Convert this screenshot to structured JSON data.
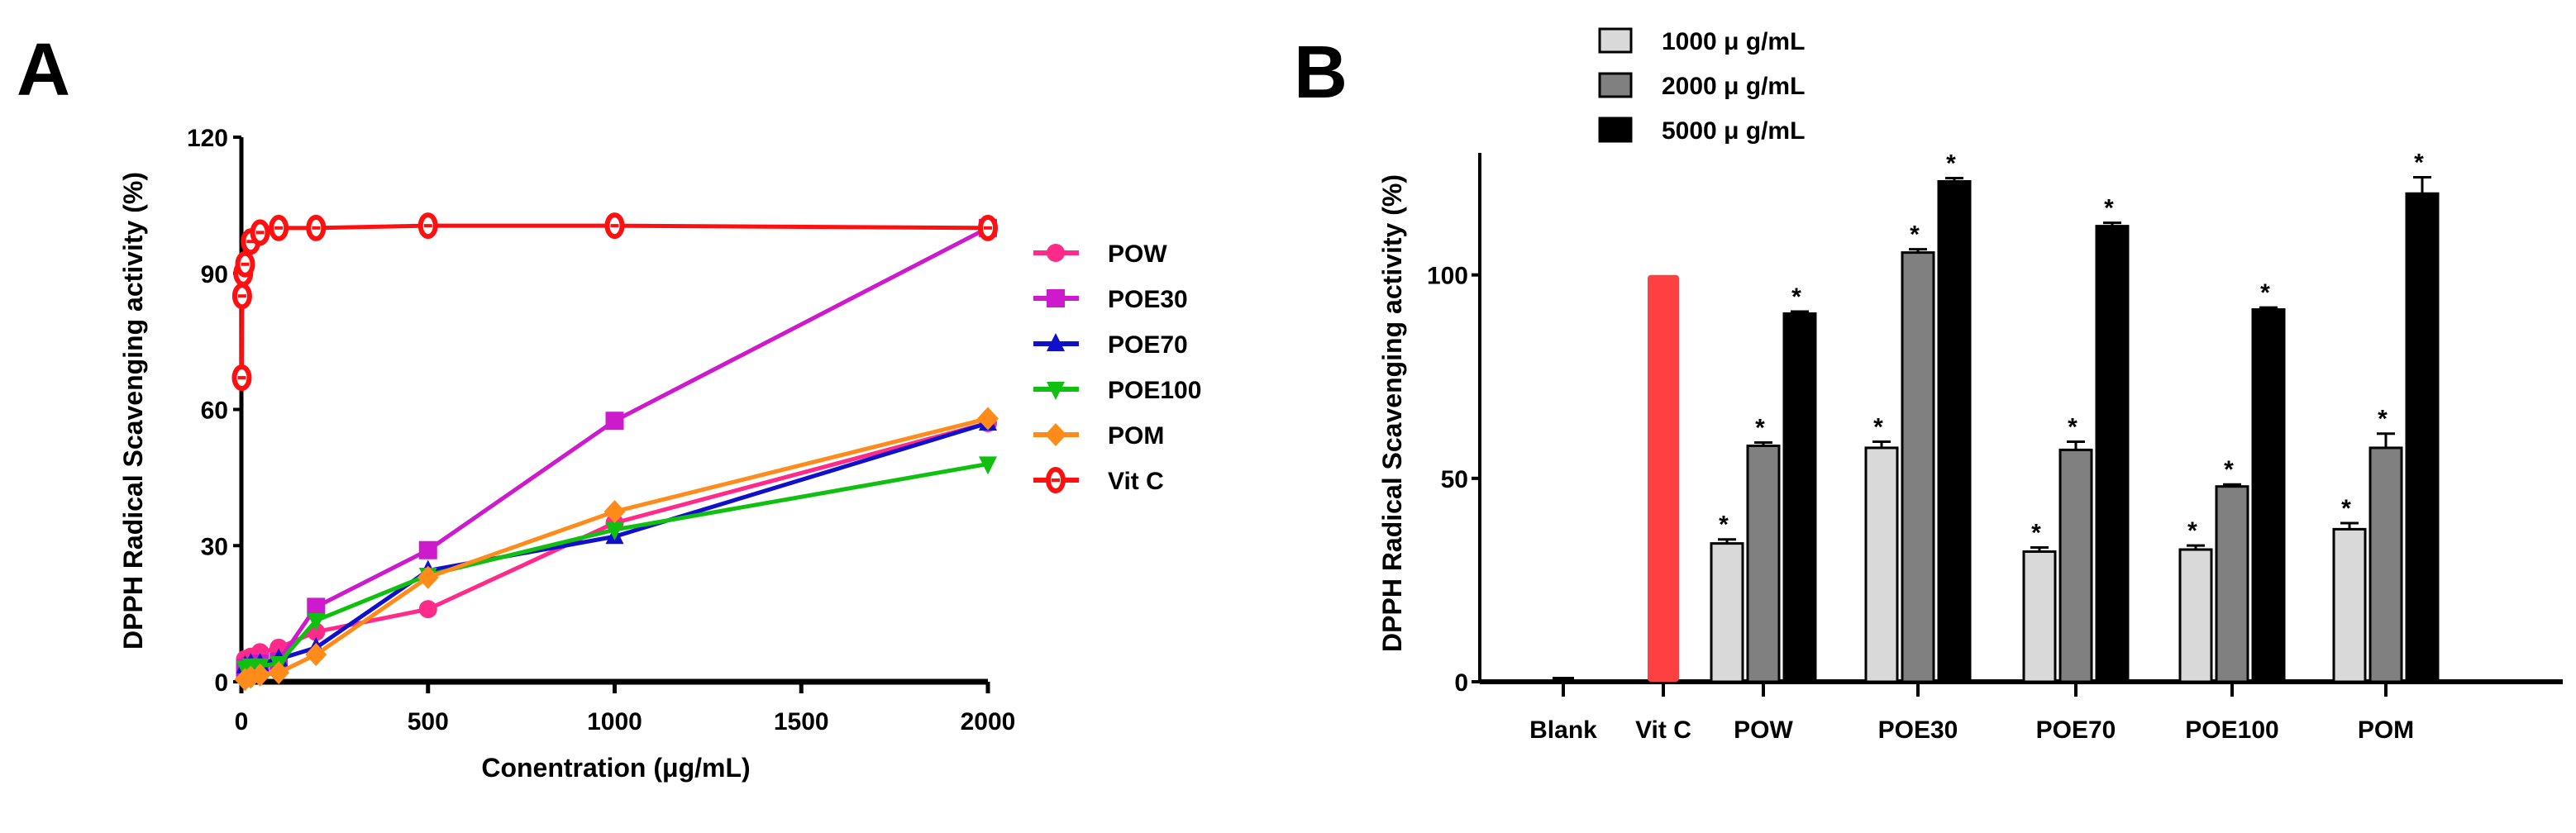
{
  "panels": {
    "a": "A",
    "b": "B"
  },
  "chart_data": [
    {
      "type": "line",
      "panel": "A",
      "xlabel": "Conentration (μg/mL)",
      "ylabel": "DPPH Radical Scavenging activity (%)",
      "xlim": [
        0,
        2000
      ],
      "ylim": [
        0,
        120
      ],
      "xticks": [
        0,
        500,
        1000,
        1500,
        2000
      ],
      "yticks": [
        0,
        30,
        60,
        90,
        120
      ],
      "legend_position": "right",
      "series": [
        {
          "name": "POW",
          "color": "#ff2a8a",
          "marker": "circle",
          "x": [
            10,
            25,
            50,
            100,
            200,
            500,
            1000,
            2000
          ],
          "y": [
            5,
            5.5,
            6.5,
            7.5,
            11,
            16,
            35,
            57
          ]
        },
        {
          "name": "POE30",
          "color": "#cc1acc",
          "marker": "square",
          "x": [
            10,
            25,
            50,
            100,
            200,
            500,
            1000,
            2000
          ],
          "y": [
            3,
            3.5,
            4,
            4.5,
            16.5,
            29,
            57.5,
            100
          ]
        },
        {
          "name": "POE70",
          "color": "#1010cc",
          "marker": "triangle-up",
          "x": [
            10,
            25,
            50,
            100,
            200,
            500,
            1000,
            2000
          ],
          "y": [
            3.5,
            4,
            4,
            5,
            7.5,
            24.5,
            32,
            57
          ]
        },
        {
          "name": "POE100",
          "color": "#10c010",
          "marker": "triangle-down",
          "x": [
            10,
            25,
            50,
            100,
            200,
            500,
            1000,
            2000
          ],
          "y": [
            3,
            3.5,
            3.5,
            4,
            13.5,
            23.5,
            33.5,
            48
          ]
        },
        {
          "name": "POM",
          "color": "#ff8c1a",
          "marker": "diamond",
          "x": [
            10,
            25,
            50,
            100,
            200,
            500,
            1000,
            2000
          ],
          "y": [
            0.5,
            1,
            1.5,
            2,
            6,
            23,
            37.5,
            58
          ]
        },
        {
          "name": "Vit C",
          "color": "#ff1010",
          "marker": "open-circle",
          "x": [
            1,
            2,
            5,
            10,
            25,
            50,
            100,
            200,
            500,
            1000,
            2000
          ],
          "y": [
            67,
            85,
            90,
            92,
            97,
            99,
            100,
            100,
            100.5,
            100.5,
            100
          ]
        }
      ]
    },
    {
      "type": "bar",
      "panel": "B",
      "xlabel": "",
      "ylabel": "DPPH Radical Scavenging activity (%)",
      "ylim": [
        0,
        130
      ],
      "yticks": [
        0,
        50,
        100
      ],
      "legend_position": "top-left",
      "categories": [
        "Blank",
        "Vit C",
        "POW",
        "POE30",
        "POE70",
        "POE100",
        "POM"
      ],
      "single": [
        {
          "category": "Blank",
          "value": 0.5,
          "error": 0.3,
          "color": "#000000"
        },
        {
          "category": "Vit C",
          "value": 100,
          "error": 0,
          "color": "#ff4040"
        }
      ],
      "series": [
        {
          "name": "1000 μ g/mL",
          "color": "#d9d9d9",
          "values": [
            null,
            null,
            34,
            57.5,
            32,
            32.5,
            37.5
          ],
          "errors": [
            null,
            null,
            1,
            1.5,
            1,
            1,
            1.5
          ]
        },
        {
          "name": "2000 μ g/mL",
          "color": "#808080",
          "values": [
            null,
            null,
            58,
            105.5,
            57,
            48,
            57.5
          ],
          "errors": [
            null,
            null,
            0.8,
            0.8,
            2,
            0.5,
            3.5
          ]
        },
        {
          "name": "5000 μ g/mL",
          "color": "#000000",
          "values": [
            null,
            null,
            90.5,
            123,
            112,
            91.5,
            120
          ],
          "errors": [
            null,
            null,
            0.5,
            0.8,
            0.8,
            0.5,
            4
          ]
        }
      ],
      "significance_marker": "*"
    }
  ]
}
